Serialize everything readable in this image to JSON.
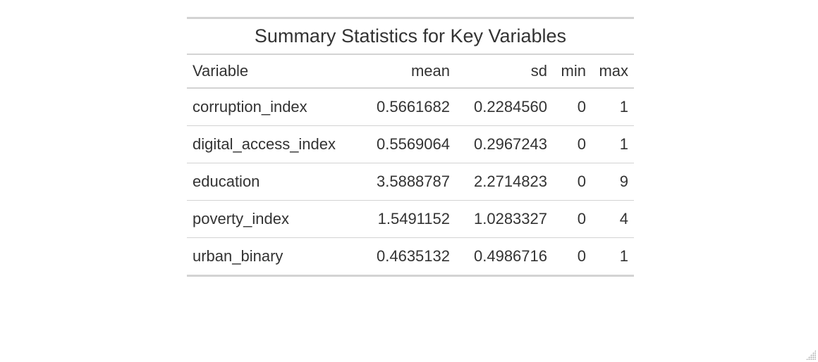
{
  "table": {
    "title": "Summary Statistics for Key Variables",
    "columns": [
      "Variable",
      "mean",
      "sd",
      "min",
      "max"
    ],
    "rows": [
      [
        "corruption_index",
        "0.5661682",
        "0.2284560",
        "0",
        "1"
      ],
      [
        "digital_access_index",
        "0.5569064",
        "0.2967243",
        "0",
        "1"
      ],
      [
        "education",
        "3.5888787",
        "2.2714823",
        "0",
        "9"
      ],
      [
        "poverty_index",
        "1.5491152",
        "1.0283327",
        "0",
        "4"
      ],
      [
        "urban_binary",
        "0.4635132",
        "0.4986716",
        "0",
        "1"
      ]
    ]
  },
  "icons": {
    "resize_grip": "resize-grip-icon"
  }
}
